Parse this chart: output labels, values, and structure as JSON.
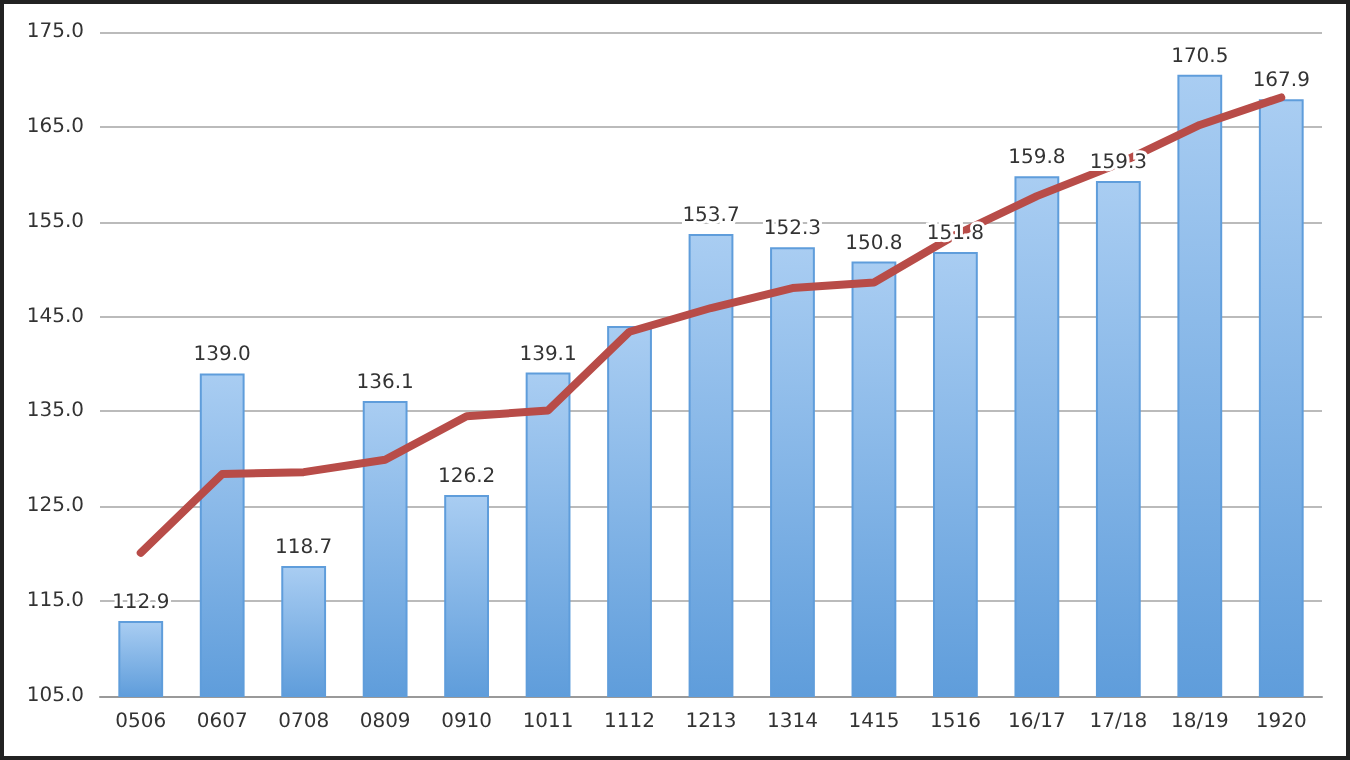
{
  "chart_data": {
    "type": "bar",
    "categories": [
      "0506",
      "0607",
      "0708",
      "0809",
      "0910",
      "1011",
      "1112",
      "1213",
      "1314",
      "1415",
      "1516",
      "16/17",
      "17/18",
      "18/19",
      "1920"
    ],
    "series": [
      {
        "color": "#5f9ddb",
        "values": [
          112.9,
          139.0,
          118.7,
          136.1,
          126.2,
          139.1,
          144.0,
          153.7,
          152.3,
          150.8,
          151.8,
          159.8,
          159.3,
          170.5,
          167.9
        ],
        "value_labels": [
          "112.9",
          "139.0",
          "118.7",
          "136.1",
          "126.2",
          "139.1",
          null,
          "153.7",
          "152.3",
          "150.8",
          "151.8",
          "159.8",
          "159.3",
          "170.5",
          "167.9"
        ]
      },
      {
        "type": "line",
        "color": "#b84c48",
        "values": [
          120.1,
          128.4,
          128.6,
          129.9,
          134.5,
          135.1,
          143.4,
          145.9,
          148.0,
          148.6,
          153.6,
          157.7,
          161.1,
          165.2,
          168.1
        ]
      }
    ],
    "ylim": [
      105,
      175
    ],
    "yticks": [
      {
        "value": 105,
        "label": "105.0"
      },
      {
        "value": 115,
        "label": "115.0"
      },
      {
        "value": 125,
        "label": "125.0"
      },
      {
        "value": 135,
        "label": "135.0"
      },
      {
        "value": 145,
        "label": "145.0"
      },
      {
        "value": 155,
        "label": "155.0"
      },
      {
        "value": 165,
        "label": "165.0"
      },
      {
        "value": 175,
        "label": "175.0"
      }
    ],
    "grid": "y",
    "marker": "none",
    "line_style": "solid"
  }
}
